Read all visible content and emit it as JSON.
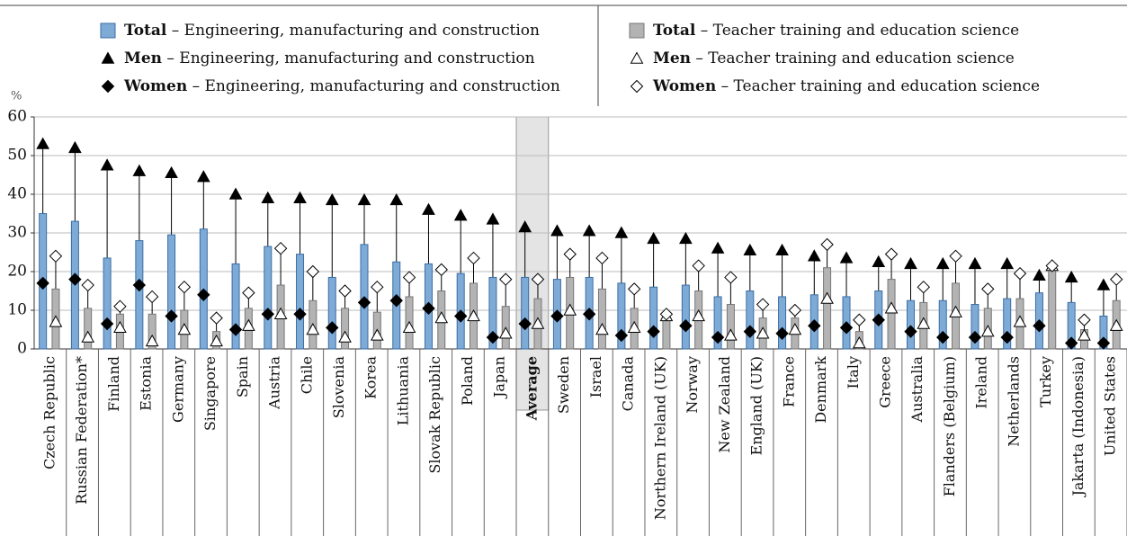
{
  "chart_data": {
    "type": "bar",
    "y_label": "%",
    "categories": [
      "Czech Republic",
      "Russian Federation*",
      "Finland",
      "Estonia",
      "Germany",
      "Singapore",
      "Spain",
      "Austria",
      "Chile",
      "Slovenia",
      "Korea",
      "Lithuania",
      "Slovak Republic",
      "Poland",
      "Japan",
      "Average",
      "Sweden",
      "Israel",
      "Canada",
      "Northern Ireland (UK)",
      "Norway",
      "New Zealand",
      "England (UK)",
      "France",
      "Denmark",
      "Italy",
      "Greece",
      "Australia",
      "Flanders (Belgium)",
      "Ireland",
      "Netherlands",
      "Turkey",
      "Jakarta (Indonesia)",
      "United States"
    ],
    "highlight_category": "Average",
    "series": [
      {
        "name": "Total – Engineering, manufacturing and construction",
        "marker": "bar",
        "group": 0,
        "color": "#7eaad6",
        "values": [
          35,
          33,
          23.5,
          28,
          29.5,
          31,
          22,
          26.5,
          24.5,
          18.5,
          27,
          22.5,
          22,
          19.5,
          18.5,
          18.5,
          18,
          18.5,
          17,
          16,
          16.5,
          13.5,
          15,
          13.5,
          14,
          13.5,
          15,
          12.5,
          12.5,
          11.5,
          13,
          14.5,
          12,
          8.5
        ]
      },
      {
        "name": "Men – Engineering, manufacturing and construction",
        "marker": "triangle",
        "group": 0,
        "color": "#000000",
        "values": [
          53,
          52,
          47.5,
          46,
          45.5,
          44.5,
          40,
          39,
          39,
          38.5,
          38.5,
          38.5,
          36,
          34.5,
          33.5,
          31.5,
          30.5,
          30.5,
          30,
          28.5,
          28.5,
          26,
          25.5,
          25.5,
          24,
          23.5,
          22.5,
          22,
          22,
          22,
          22,
          19,
          18.5,
          16.5
        ]
      },
      {
        "name": "Women – Engineering, manufacturing and construction",
        "marker": "diamond",
        "group": 0,
        "color": "#000000",
        "values": [
          17,
          18,
          6.5,
          16.5,
          8.5,
          14,
          5,
          9,
          9,
          5.5,
          12,
          12.5,
          10.5,
          8.5,
          3,
          6.5,
          8.5,
          9,
          3.5,
          4.5,
          6,
          3,
          4.5,
          4,
          6,
          5.5,
          7.5,
          4.5,
          3,
          3,
          3,
          6,
          1.5,
          1.5
        ]
      },
      {
        "name": "Total – Teacher training and education science",
        "marker": "bar",
        "group": 1,
        "color": "#b3b3b3",
        "values": [
          15.5,
          10.5,
          9,
          9,
          10,
          4.5,
          10.5,
          16.5,
          12.5,
          10.5,
          9.5,
          13.5,
          15,
          17,
          11,
          13,
          18.5,
          15.5,
          10.5,
          9,
          15,
          11.5,
          8,
          8,
          21,
          4.5,
          18,
          12,
          17,
          10.5,
          13,
          21,
          5,
          12.5
        ]
      },
      {
        "name": "Men – Teacher training and education science",
        "marker": "triangle",
        "group": 1,
        "color": "#ffffff",
        "values": [
          7,
          3,
          5.5,
          2,
          5,
          2,
          6,
          9,
          5,
          3,
          3.5,
          5.5,
          8,
          8.5,
          4,
          6.5,
          10,
          5,
          5.5,
          8.5,
          8.5,
          3.5,
          4,
          5,
          13,
          1.5,
          10.5,
          6.5,
          9.5,
          4.5,
          7,
          21.5,
          3.5,
          6
        ]
      },
      {
        "name": "Women – Teacher training and education science",
        "marker": "diamond",
        "group": 1,
        "color": "#ffffff",
        "values": [
          24,
          16.5,
          11,
          13.5,
          16,
          8,
          14.5,
          26,
          20,
          15,
          16,
          18.5,
          20.5,
          23.5,
          18,
          18,
          24.5,
          23.5,
          15.5,
          9,
          21.5,
          18.5,
          11.5,
          10,
          27,
          7.5,
          24.5,
          16,
          24,
          15.5,
          19.5,
          21.5,
          7.5,
          18
        ]
      }
    ],
    "ylim": [
      0,
      60
    ],
    "yticks": [
      0,
      10,
      20,
      30,
      40,
      50,
      60
    ],
    "grid": true
  }
}
